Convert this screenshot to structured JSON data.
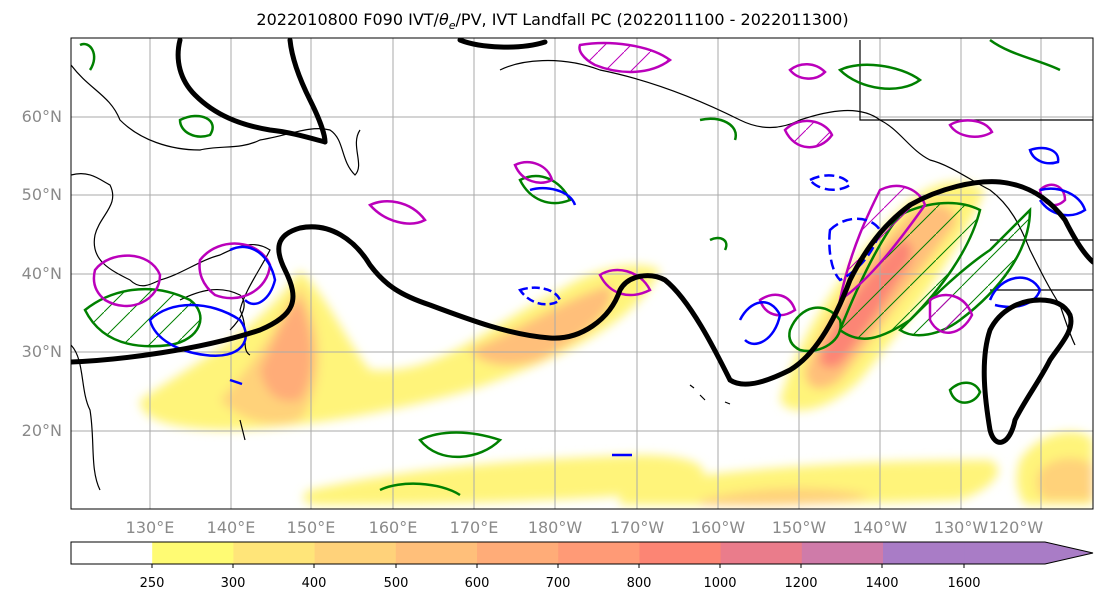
{
  "figure": {
    "title_pre": "2022010800 F090 IVT/",
    "title_theta": "θ",
    "title_sub": "e",
    "title_post": "/PV, IVT Landfall PC (2022011100 - 2022011300)"
  },
  "map": {
    "lat_labels": [
      "60°N",
      "50°N",
      "40°N",
      "30°N",
      "20°N"
    ],
    "lon_labels": [
      "130°E",
      "140°E",
      "150°E",
      "160°E",
      "170°E",
      "180°W",
      "170°W",
      "160°W",
      "150°W",
      "140°W",
      "130°W",
      "120°W"
    ],
    "colors": {
      "ridge_contour": "#000000",
      "theta_contour": "#0000ff",
      "pv_contour": "#bb00bb",
      "landfall_contour": "#008000",
      "coastline": "#000000",
      "grid": "#aaaaaa"
    }
  },
  "colorbar": {
    "levels": [
      "250",
      "300",
      "400",
      "500",
      "600",
      "700",
      "800",
      "1000",
      "1200",
      "1400",
      "1600"
    ],
    "colors": [
      "#ffffff",
      "#fffb73",
      "#ffe579",
      "#ffd27a",
      "#ffbf7a",
      "#ffac78",
      "#ff9a76",
      "#fc8574",
      "#ea7c8b",
      "#cf7ba9",
      "#a97cc6",
      "#a97cc6"
    ]
  }
}
